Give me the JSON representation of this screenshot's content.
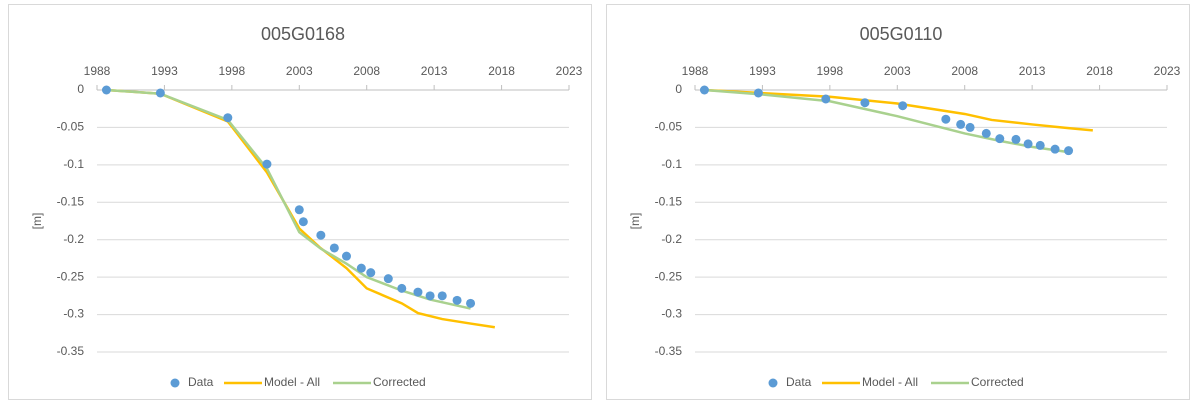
{
  "chart_data": [
    {
      "type": "line",
      "title": "005G0168",
      "ylabel": "[m]",
      "xlim": [
        1988,
        2023
      ],
      "xticks": [
        1988,
        1993,
        1998,
        2003,
        2008,
        2013,
        2018,
        2023
      ],
      "ylim": [
        -0.35,
        0
      ],
      "yticks": [
        0,
        -0.05,
        -0.1,
        -0.15,
        -0.2,
        -0.25,
        -0.3,
        -0.35
      ],
      "grid": true,
      "legend": "bottom",
      "series": [
        {
          "name": "Data",
          "type": "scatter",
          "color": "#5b9bd5",
          "x": [
            1988.7,
            1992.7,
            1997.7,
            2000.6,
            2003.0,
            2003.3,
            2004.6,
            2005.6,
            2006.5,
            2007.6,
            2008.3,
            2009.6,
            2010.6,
            2011.8,
            2012.7,
            2013.6,
            2014.7,
            2015.7
          ],
          "values": [
            0,
            -0.004,
            -0.037,
            -0.099,
            -0.16,
            -0.176,
            -0.194,
            -0.211,
            -0.222,
            -0.238,
            -0.244,
            -0.252,
            -0.265,
            -0.27,
            -0.275,
            -0.275,
            -0.281,
            -0.285
          ]
        },
        {
          "name": "Model - All",
          "type": "line",
          "color": "#ffc000",
          "x": [
            1988.7,
            1992.7,
            1997.7,
            2000.6,
            2003.0,
            2004.5,
            2006.5,
            2008.0,
            2010.6,
            2011.8,
            2013.6,
            2015.7,
            2017.5
          ],
          "values": [
            0,
            -0.005,
            -0.042,
            -0.11,
            -0.185,
            -0.21,
            -0.238,
            -0.265,
            -0.285,
            -0.298,
            -0.306,
            -0.312,
            -0.317
          ]
        },
        {
          "name": "Corrected",
          "type": "line",
          "color": "#a9d18e",
          "x": [
            1988.7,
            1992.7,
            1997.7,
            2000.6,
            2003.0,
            2004.6,
            2006.5,
            2008.0,
            2010.6,
            2012.7,
            2015.7
          ],
          "values": [
            0,
            -0.005,
            -0.04,
            -0.105,
            -0.19,
            -0.212,
            -0.232,
            -0.25,
            -0.268,
            -0.28,
            -0.292
          ]
        }
      ]
    },
    {
      "type": "line",
      "title": "005G0110",
      "ylabel": "[m]",
      "xlim": [
        1988,
        2023
      ],
      "xticks": [
        1988,
        1993,
        1998,
        2003,
        2008,
        2013,
        2018,
        2023
      ],
      "ylim": [
        -0.35,
        0
      ],
      "yticks": [
        0,
        -0.05,
        -0.1,
        -0.15,
        -0.2,
        -0.25,
        -0.3,
        -0.35
      ],
      "grid": true,
      "legend": "bottom",
      "series": [
        {
          "name": "Data",
          "type": "scatter",
          "color": "#5b9bd5",
          "x": [
            1988.7,
            1992.7,
            1997.7,
            2000.6,
            2003.4,
            2006.6,
            2007.7,
            2008.4,
            2009.6,
            2010.6,
            2011.8,
            2012.7,
            2013.6,
            2014.7,
            2015.7
          ],
          "values": [
            0,
            -0.004,
            -0.012,
            -0.017,
            -0.021,
            -0.039,
            -0.046,
            -0.05,
            -0.058,
            -0.065,
            -0.066,
            -0.072,
            -0.074,
            -0.079,
            -0.081
          ]
        },
        {
          "name": "Model - All",
          "type": "line",
          "color": "#ffc000",
          "x": [
            1988.7,
            1998.0,
            2003.0,
            2008.0,
            2010.0,
            2013.0,
            2015.7,
            2017.5
          ],
          "values": [
            0,
            -0.009,
            -0.018,
            -0.032,
            -0.04,
            -0.046,
            -0.051,
            -0.054
          ]
        },
        {
          "name": "Corrected",
          "type": "line",
          "color": "#a9d18e",
          "x": [
            1988.7,
            1993.0,
            1998.0,
            2003.0,
            2008.0,
            2010.6,
            2013.0,
            2015.7
          ],
          "values": [
            0,
            -0.006,
            -0.015,
            -0.035,
            -0.058,
            -0.068,
            -0.076,
            -0.083
          ]
        }
      ]
    }
  ]
}
